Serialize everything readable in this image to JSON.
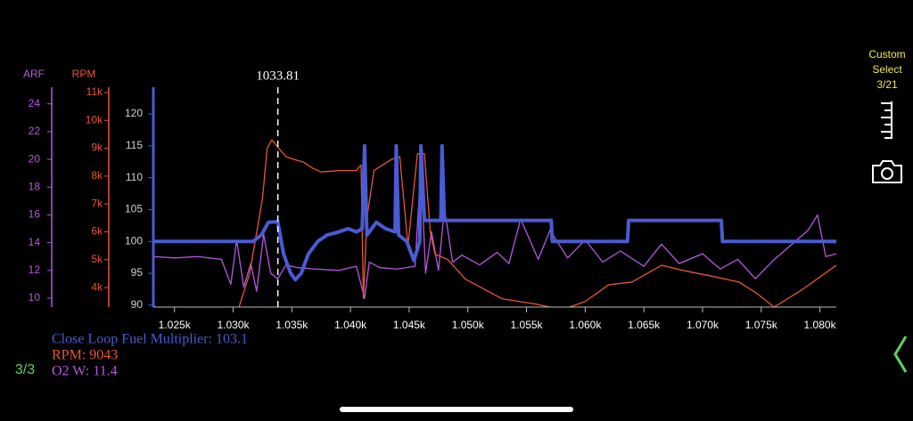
{
  "chart_data": {
    "type": "line",
    "ylabel": "",
    "y2label": "RPM",
    "y3label": "ARF",
    "xlim": [
      1023.2,
      1081.4
    ],
    "xticks": [
      {
        "value": 1025,
        "label": "1.025k"
      },
      {
        "value": 1030,
        "label": "1.030k"
      },
      {
        "value": 1035,
        "label": "1.035k"
      },
      {
        "value": 1040,
        "label": "1.040k"
      },
      {
        "value": 1045,
        "label": "1.045k"
      },
      {
        "value": 1050,
        "label": "1.050k"
      },
      {
        "value": 1055,
        "label": "1.055k"
      },
      {
        "value": 1060,
        "label": "1.060k"
      },
      {
        "value": 1065,
        "label": "1.065k"
      },
      {
        "value": 1070,
        "label": "1.070k"
      },
      {
        "value": 1075,
        "label": "1.075k"
      },
      {
        "value": 1080,
        "label": "1.080k"
      }
    ],
    "ylim": [
      89.7,
      124.2
    ],
    "yticks": [
      90,
      95,
      100,
      105,
      110,
      115,
      120
    ],
    "y2lim": [
      3300,
      11190
    ],
    "y2ticks": [
      {
        "value": 4000,
        "label": "4k"
      },
      {
        "value": 5000,
        "label": "5k"
      },
      {
        "value": 6000,
        "label": "6k"
      },
      {
        "value": 7000,
        "label": "7k"
      },
      {
        "value": 8000,
        "label": "8k"
      },
      {
        "value": 9000,
        "label": "9k"
      },
      {
        "value": 10000,
        "label": "10k"
      },
      {
        "value": 11000,
        "label": "11k"
      }
    ],
    "y3lim": [
      9.36,
      25.2
    ],
    "y3ticks": [
      10,
      12,
      14,
      16,
      18,
      20,
      22,
      24
    ],
    "cursor": {
      "x": 1033.81
    },
    "series": [
      {
        "color": "#4a5bd4",
        "axis": "y",
        "x": [
          1023.2,
          1031.7,
          1032.4,
          1033.0,
          1033.8,
          1034.3,
          1034.9,
          1035.3,
          1035.8,
          1036.4,
          1037.2,
          1038.0,
          1039.0,
          1039.8,
          1040.5,
          1041.0,
          1041.2,
          1041.4,
          1042.2,
          1043.0,
          1043.8,
          1043.9,
          1044.1,
          1044.8,
          1045.4,
          1045.9,
          1046.0,
          1046.3,
          1047.7,
          1047.8,
          1048.0,
          1057.1,
          1057.2,
          1063.6,
          1063.7,
          1071.6,
          1071.7,
          1081.4
        ],
        "values": [
          100,
          100,
          101,
          103,
          103.1,
          98,
          95,
          94,
          95,
          98,
          100,
          101,
          101.5,
          102,
          101.5,
          102,
          115,
          101,
          103,
          102,
          101.5,
          115,
          101,
          100,
          97,
          100,
          115,
          103.3,
          103.3,
          115,
          103.3,
          103.3,
          100,
          100,
          103.3,
          103.3,
          100,
          100
        ]
      },
      {
        "color": "#e8553a",
        "axis": "y2",
        "x": [
          1029.5,
          1030.5,
          1031.4,
          1032.5,
          1032.9,
          1033.3,
          1033.8,
          1034.5,
          1035.2,
          1036.0,
          1036.7,
          1037.5,
          1039.0,
          1040.5,
          1040.9,
          1041.1,
          1041.4,
          1042.0,
          1043.5,
          1044.2,
          1044.9,
          1045.7,
          1046.3,
          1046.8,
          1047.2,
          1048.3,
          1049.8,
          1052.9,
          1055.9,
          1058.0,
          1060.0,
          1062.0,
          1064.0,
          1066.5,
          1068.5,
          1070.9,
          1073.1,
          1074.6,
          1076.1,
          1078.4,
          1081.4
        ],
        "values": [
          3000,
          3300,
          4500,
          7200,
          9000,
          9300,
          9043,
          8700,
          8600,
          8500,
          8300,
          8150,
          8200,
          8200,
          8400,
          3600,
          6500,
          8200,
          8600,
          8700,
          5500,
          8800,
          8800,
          6000,
          5200,
          5000,
          4300,
          3600,
          3400,
          3200,
          3500,
          4100,
          4200,
          4800,
          4600,
          4400,
          4200,
          3800,
          3300,
          3900,
          4800
        ]
      },
      {
        "color": "#b658e0",
        "axis": "y3",
        "x": [
          1023.2,
          1025.0,
          1027.0,
          1029.0,
          1029.8,
          1030.3,
          1030.9,
          1031.5,
          1032.0,
          1032.6,
          1033.2,
          1033.8,
          1034.5,
          1035.5,
          1037.0,
          1039.0,
          1040.5,
          1041.2,
          1041.6,
          1042.5,
          1044.0,
          1045.5,
          1046.0,
          1046.4,
          1046.9,
          1047.5,
          1048.0,
          1048.7,
          1049.5,
          1051.0,
          1052.5,
          1053.5,
          1054.5,
          1056.0,
          1057.0,
          1058.5,
          1060.0,
          1061.5,
          1063.0,
          1065.0,
          1066.5,
          1068.0,
          1070.0,
          1071.5,
          1073.0,
          1074.5,
          1076.0,
          1077.5,
          1079.0,
          1079.8,
          1080.5,
          1081.4
        ],
        "values": [
          13.0,
          12.9,
          13.0,
          12.8,
          11.0,
          14.2,
          10.8,
          12.5,
          10.5,
          14.6,
          11.8,
          11.4,
          12.4,
          12.2,
          12.1,
          12.0,
          12.3,
          10.0,
          12.6,
          12.2,
          12.1,
          12.3,
          19.5,
          11.8,
          14.8,
          12.0,
          16.5,
          12.6,
          13.1,
          12.4,
          13.3,
          12.5,
          15.7,
          12.8,
          14.9,
          12.9,
          14.2,
          12.6,
          13.4,
          12.3,
          13.9,
          12.5,
          13.2,
          12.1,
          12.8,
          11.4,
          12.7,
          13.8,
          14.9,
          16.0,
          13.0,
          13.2
        ]
      }
    ],
    "readout": [
      "Close Loop Fuel Multiplier: 103.1",
      "RPM: 9043",
      "O2 W: 11.4"
    ]
  },
  "ui": {
    "custom_select": [
      "Custom",
      "Select",
      "3/21"
    ],
    "page": "3/3"
  }
}
